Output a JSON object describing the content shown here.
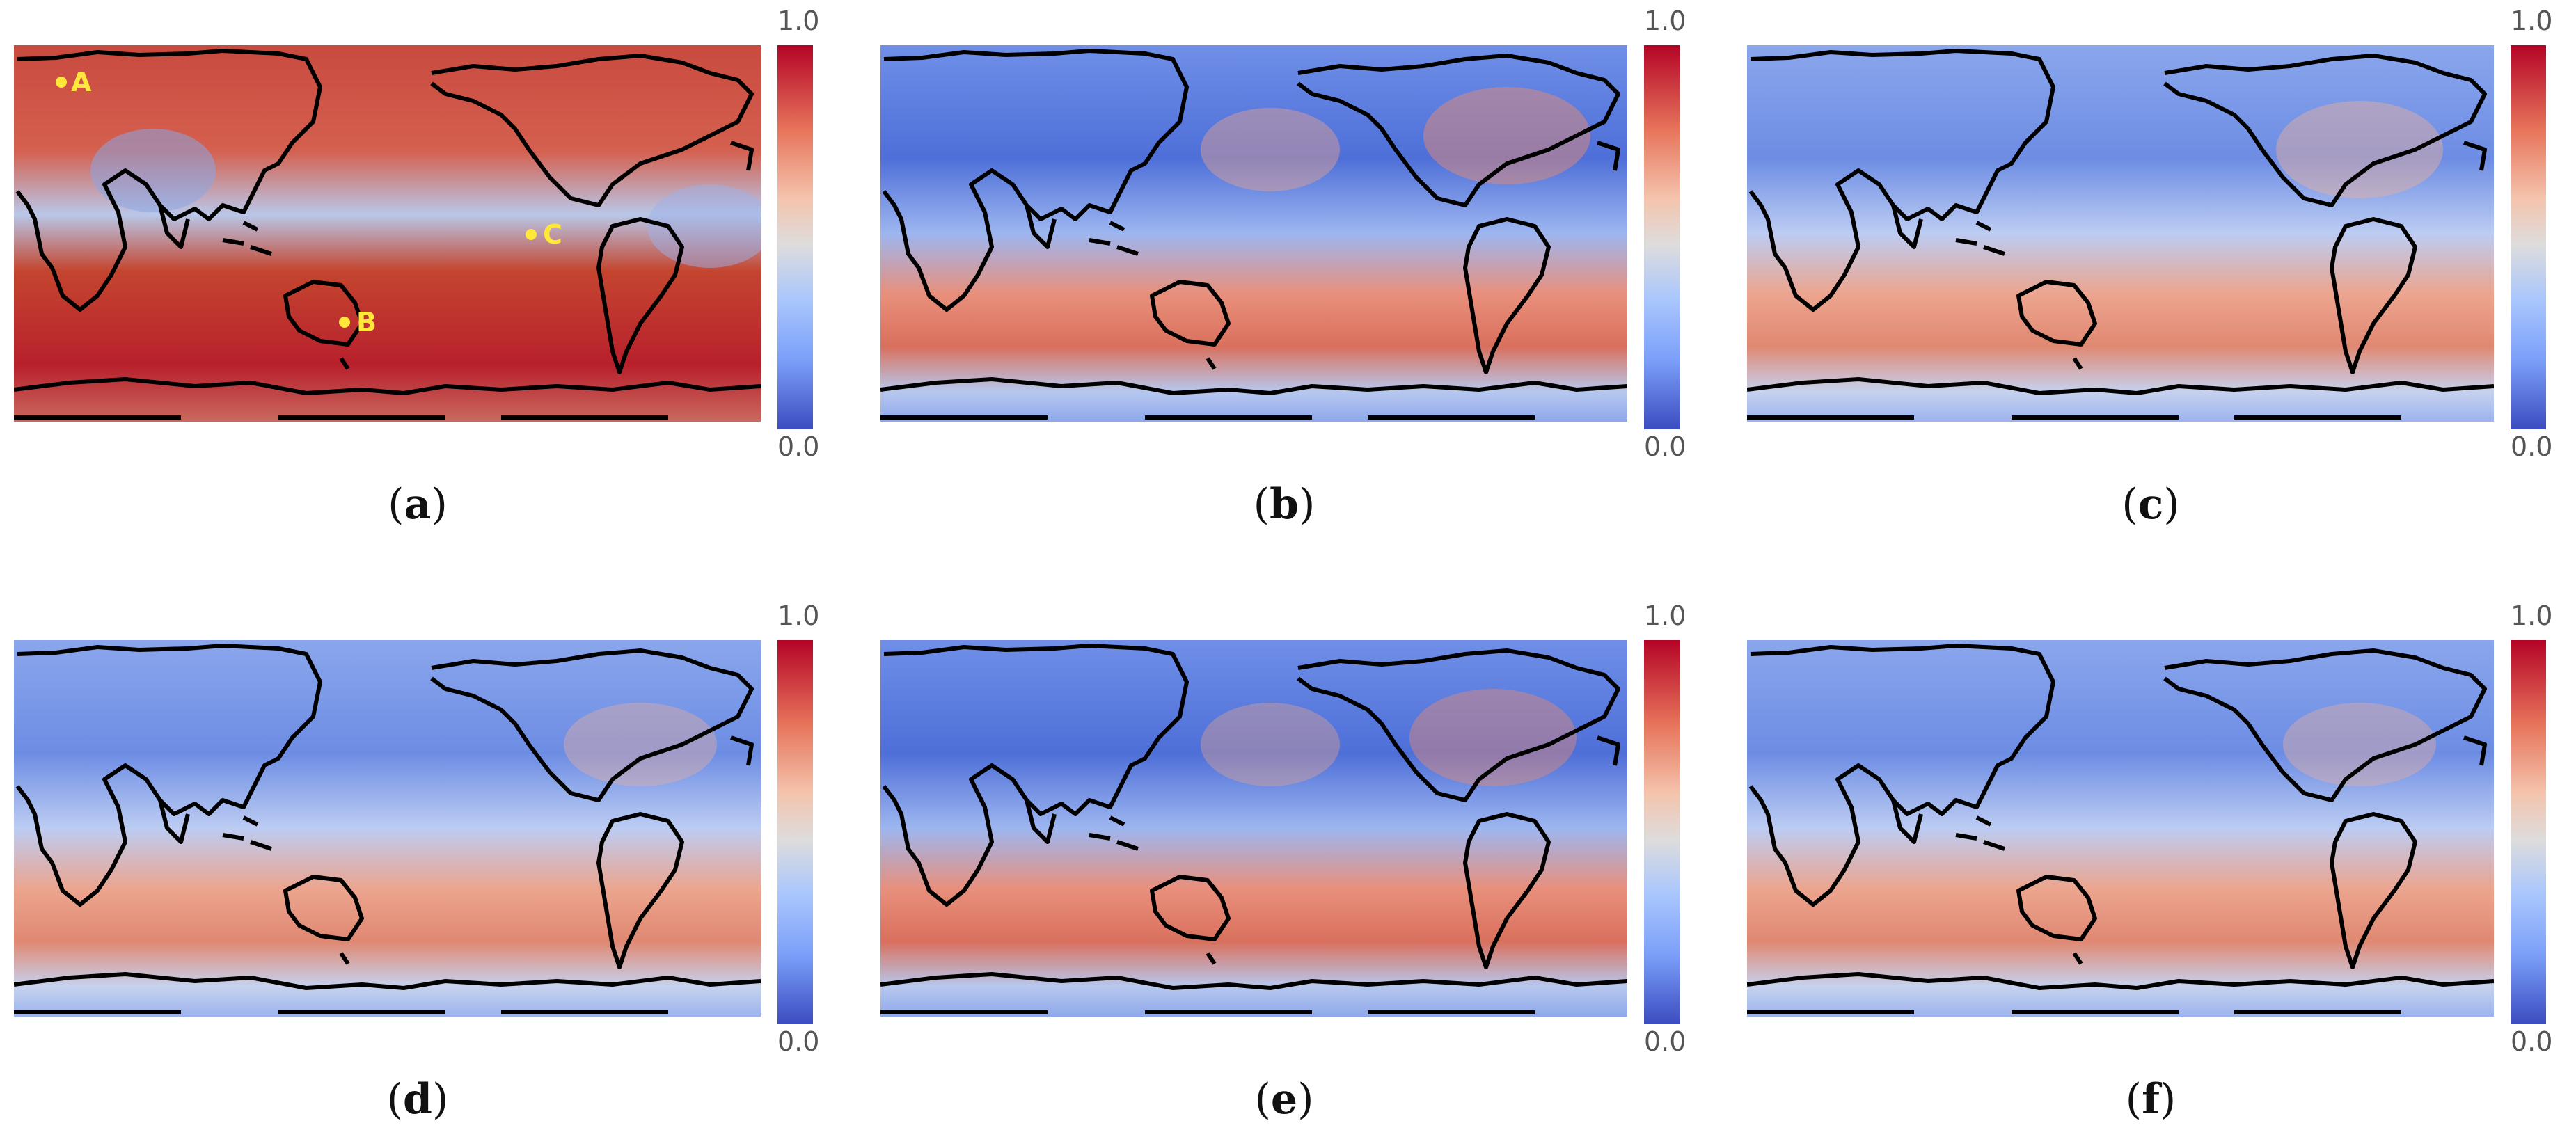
{
  "colorbar": {
    "max_label": "1.0",
    "min_label": "0.0"
  },
  "panels": [
    {
      "letter": "a",
      "markers": [
        "A",
        "B",
        "C"
      ]
    },
    {
      "letter": "b"
    },
    {
      "letter": "c"
    },
    {
      "letter": "d"
    },
    {
      "letter": "e"
    },
    {
      "letter": "f"
    }
  ]
}
